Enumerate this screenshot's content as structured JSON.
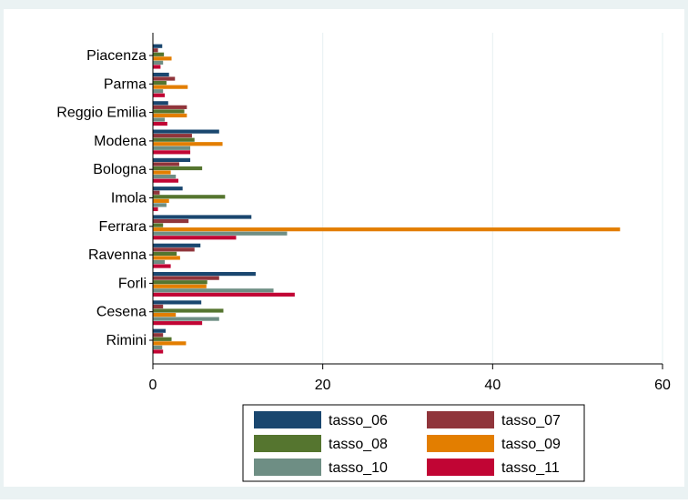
{
  "chart_data": {
    "type": "bar",
    "orientation": "horizontal",
    "categories": [
      "Piacenza",
      "Parma",
      "Reggio Emilia",
      "Modena",
      "Bologna",
      "Imola",
      "Ferrara",
      "Ravenna",
      "Forli",
      "Cesena",
      "Rimini"
    ],
    "series": [
      {
        "name": "tasso_06",
        "color": "#1a476f",
        "values": [
          1.1,
          1.9,
          1.8,
          7.8,
          4.4,
          3.5,
          11.6,
          5.6,
          12.1,
          5.7,
          1.5
        ]
      },
      {
        "name": "tasso_07",
        "color": "#90353b",
        "values": [
          0.6,
          2.6,
          4.0,
          4.6,
          3.1,
          0.8,
          4.2,
          4.9,
          7.8,
          1.2,
          1.2
        ]
      },
      {
        "name": "tasso_08",
        "color": "#55752f",
        "values": [
          1.3,
          1.6,
          3.7,
          4.9,
          5.8,
          8.5,
          1.2,
          2.8,
          6.4,
          8.3,
          2.2
        ]
      },
      {
        "name": "tasso_09",
        "color": "#e37e00",
        "values": [
          2.2,
          4.1,
          4.0,
          8.2,
          2.1,
          1.9,
          55.0,
          3.2,
          6.3,
          2.7,
          3.9
        ]
      },
      {
        "name": "tasso_10",
        "color": "#6e8e84",
        "values": [
          1.2,
          1.2,
          1.4,
          4.4,
          2.7,
          1.6,
          15.8,
          1.4,
          14.2,
          7.8,
          1.1
        ]
      },
      {
        "name": "tasso_11",
        "color": "#c10534",
        "values": [
          0.9,
          1.4,
          1.7,
          4.4,
          3.0,
          0.6,
          9.8,
          2.1,
          16.7,
          5.8,
          1.2
        ]
      }
    ],
    "xlim": [
      0,
      60
    ],
    "xticks": [
      "0",
      "20",
      "40",
      "60"
    ],
    "grid": "vertical",
    "legend": "bottom",
    "title": "",
    "xlabel": "",
    "ylabel": "",
    "background": "#eaf2f3"
  }
}
